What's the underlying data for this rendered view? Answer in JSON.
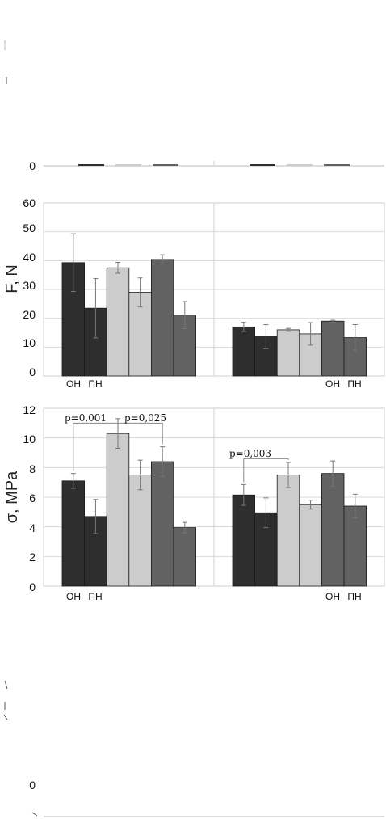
{
  "chart_data": [
    {
      "type": "bar",
      "panel": "force",
      "ylabel": "F, N",
      "ylim": [
        0,
        60
      ],
      "yticks": [
        "0",
        "10",
        "20",
        "30",
        "40",
        "50",
        "60"
      ],
      "grid": true,
      "groups": [
        {
          "bars": [
            {
              "value": 39.3,
              "err": 10,
              "color": "#2e2e2e"
            },
            {
              "value": 23.5,
              "err": 10.3,
              "color": "#2e2e2e"
            },
            {
              "value": 37.5,
              "err": 1.9,
              "color": "#cccccc"
            },
            {
              "value": 29.0,
              "err": 5.0,
              "color": "#cccccc"
            },
            {
              "value": 40.4,
              "err": 1.6,
              "color": "#626262"
            },
            {
              "value": 21.1,
              "err": 4.7,
              "color": "#626262"
            }
          ],
          "labels": [
            "ОН",
            "ПН"
          ]
        },
        {
          "bars": [
            {
              "value": 17.0,
              "err": 1.6,
              "color": "#2e2e2e"
            },
            {
              "value": 13.6,
              "err": 4.2,
              "color": "#2e2e2e"
            },
            {
              "value": 16.0,
              "err": 0.5,
              "color": "#cccccc"
            },
            {
              "value": 14.6,
              "err": 3.9,
              "color": "#cccccc"
            },
            {
              "value": 19.0,
              "err": 0.3,
              "color": "#626262"
            },
            {
              "value": 13.3,
              "err": 4.5,
              "color": "#626262"
            }
          ],
          "labels": [
            "ОН",
            "ПН"
          ]
        }
      ]
    },
    {
      "type": "bar",
      "panel": "stress",
      "ylabel": "σ, MPa",
      "ylim": [
        0,
        12
      ],
      "yticks": [
        "0",
        "2",
        "4",
        "6",
        "8",
        "10",
        "12"
      ],
      "grid": true,
      "groups": [
        {
          "bars": [
            {
              "value": 7.1,
              "err": 0.5,
              "color": "#2e2e2e"
            },
            {
              "value": 4.7,
              "err": 1.15,
              "color": "#2e2e2e"
            },
            {
              "value": 10.3,
              "err": 1.0,
              "color": "#cccccc"
            },
            {
              "value": 7.5,
              "err": 1.0,
              "color": "#cccccc"
            },
            {
              "value": 8.4,
              "err": 1.0,
              "color": "#626262"
            },
            {
              "value": 3.95,
              "err": 0.35,
              "color": "#626262"
            }
          ],
          "labels": [
            "ОН",
            "ПН"
          ]
        },
        {
          "bars": [
            {
              "value": 6.15,
              "err": 0.7,
              "color": "#2e2e2e"
            },
            {
              "value": 4.95,
              "err": 1.0,
              "color": "#2e2e2e"
            },
            {
              "value": 7.5,
              "err": 0.85,
              "color": "#cccccc"
            },
            {
              "value": 5.5,
              "err": 0.3,
              "color": "#cccccc"
            },
            {
              "value": 7.6,
              "err": 0.85,
              "color": "#626262"
            },
            {
              "value": 5.4,
              "err": 0.8,
              "color": "#626262"
            }
          ],
          "labels": [
            "ОН",
            "ПН"
          ]
        }
      ],
      "annotations": [
        {
          "text": "p=0,001",
          "group": 0,
          "from": 0,
          "to": 2,
          "level": 11.0
        },
        {
          "text": "p=0,025",
          "group": 0,
          "from": 2,
          "to": 4,
          "level": 11.0
        },
        {
          "text": "p=0,003",
          "group": 1,
          "from": 0,
          "to": 2,
          "level": 8.6
        }
      ]
    }
  ],
  "partial": {
    "top_tick": "0",
    "bottom_tick": "0"
  }
}
